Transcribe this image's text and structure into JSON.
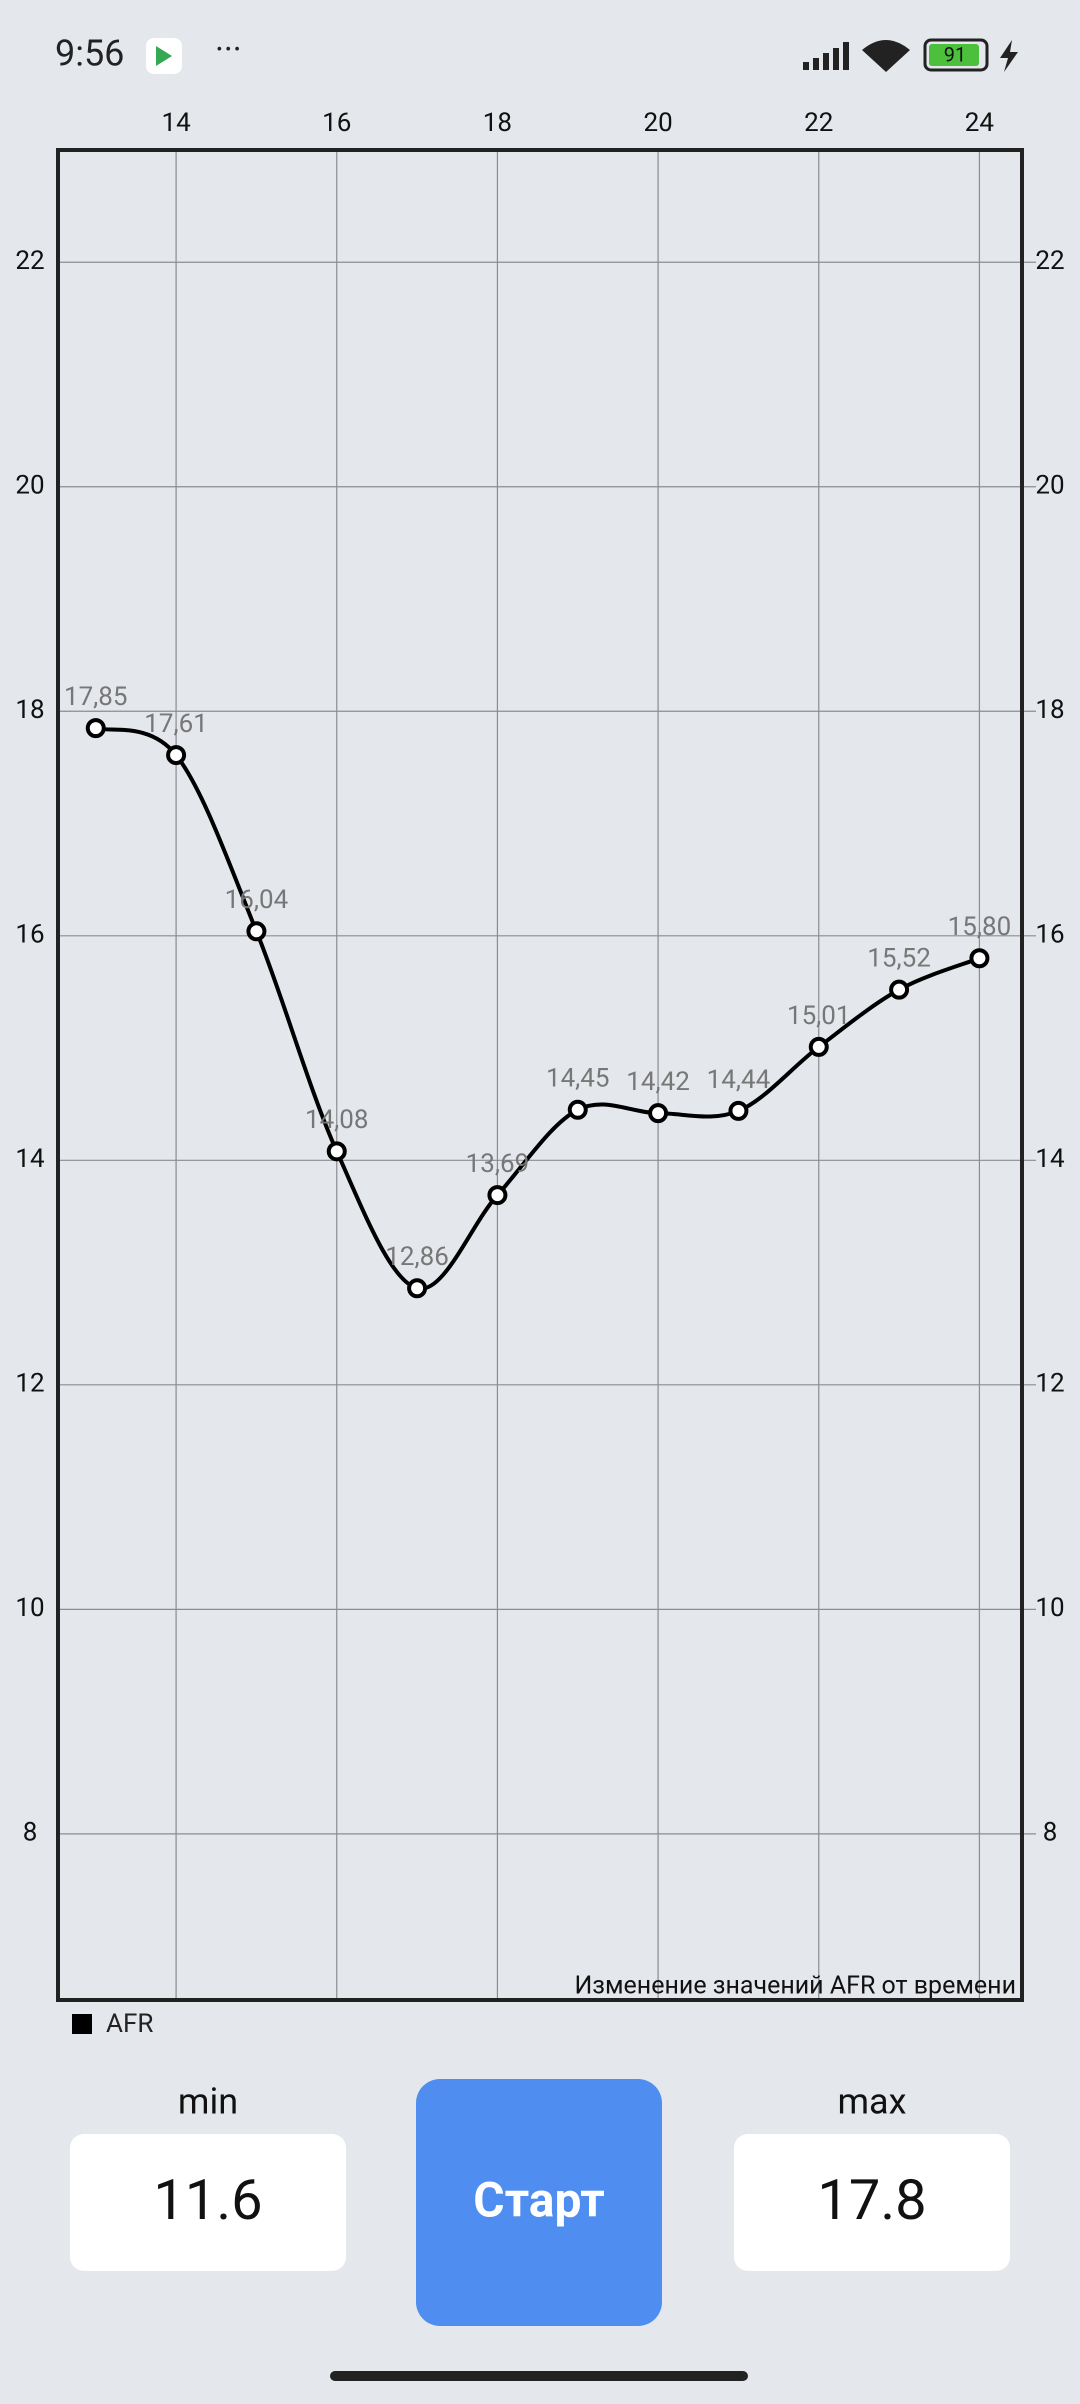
{
  "status_bar": {
    "time": "9:56",
    "battery": "91"
  },
  "chart_data": {
    "type": "line",
    "title": "Изменение значений AFR от времени",
    "x": [
      13,
      14,
      15,
      16,
      17,
      18,
      19,
      20,
      21,
      22,
      23,
      24
    ],
    "series": [
      {
        "name": "AFR",
        "color": "#000000",
        "values": [
          17.85,
          17.61,
          16.04,
          14.08,
          12.86,
          13.69,
          14.45,
          14.42,
          14.44,
          15.01,
          15.52,
          15.8
        ],
        "value_labels": [
          "17,85",
          "17,61",
          "16,04",
          "14,08",
          "12,86",
          "13,69",
          "14,45",
          "14,42",
          "14,44",
          "15,01",
          "15,52",
          "15,80"
        ]
      }
    ],
    "xlim": [
      12.53,
      24.53
    ],
    "xticks": [
      14,
      16,
      18,
      20,
      22,
      24
    ],
    "ylim": [
      6.52,
      23
    ],
    "yticks": [
      8,
      10,
      12,
      14,
      16,
      18,
      20,
      22
    ],
    "grid": true,
    "legend": "bottom-left"
  },
  "controls": {
    "min_label": "min",
    "min_value": "11.6",
    "button": "Старт",
    "max_label": "max",
    "max_value": "17.8"
  }
}
